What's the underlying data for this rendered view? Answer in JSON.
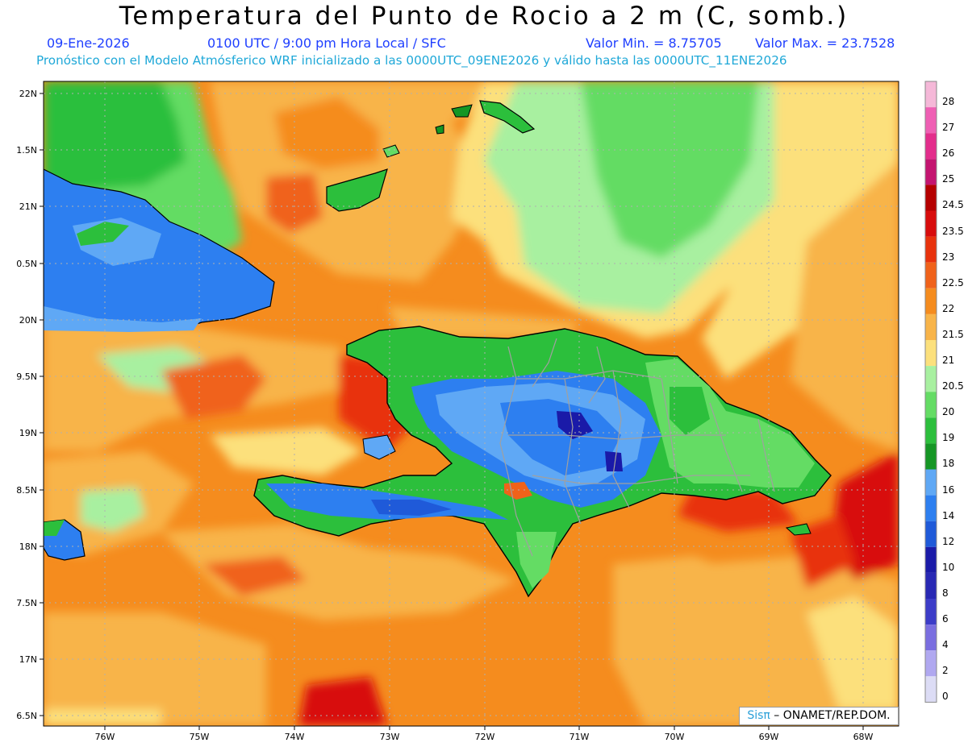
{
  "header": {
    "title": "Temperatura del Punto de Rocio a 2 m (C, somb.)",
    "date": "09-Ene-2026",
    "time": "0100 UTC / 9:00 pm Hora Local / SFC",
    "min_value": "Valor Min. = 8.75705",
    "max_value": "Valor Max. = 23.7528",
    "description": "Pronóstico con el Modelo Atmósferico WRF inicializado a las 0000UTC_09ENE2026 y válido hasta las  0000UTC_11ENE2026"
  },
  "axes": {
    "lat_labels": [
      "22N",
      "1.5N",
      "21N",
      "0.5N",
      "20N",
      "9.5N",
      "19N",
      "8.5N",
      "18N",
      "7.5N",
      "17N",
      "6.5N"
    ],
    "lon_labels": [
      "76W",
      "75W",
      "74W",
      "73W",
      "72W",
      "71W",
      "70W",
      "69W",
      "68W"
    ]
  },
  "colorbar": {
    "levels": [
      {
        "label": "28",
        "color": "#f5b8d8"
      },
      {
        "label": "27",
        "color": "#ef5fb4"
      },
      {
        "label": "26",
        "color": "#e32d8c"
      },
      {
        "label": "25",
        "color": "#c41470"
      },
      {
        "label": "24.5",
        "color": "#b50000"
      },
      {
        "label": "23.5",
        "color": "#d80c0c"
      },
      {
        "label": "23",
        "color": "#e8320c"
      },
      {
        "label": "22.5",
        "color": "#f0621a"
      },
      {
        "label": "22",
        "color": "#f58c1e"
      },
      {
        "label": "21.5",
        "color": "#f8b449"
      },
      {
        "label": "21",
        "color": "#fce07c"
      },
      {
        "label": "20.5",
        "color": "#a8f0a0"
      },
      {
        "label": "20",
        "color": "#64dc64"
      },
      {
        "label": "19",
        "color": "#2cbf3c"
      },
      {
        "label": "18",
        "color": "#159624"
      },
      {
        "label": "16",
        "color": "#5fa8f5"
      },
      {
        "label": "14",
        "color": "#2d7ff0"
      },
      {
        "label": "12",
        "color": "#1f5ad9"
      },
      {
        "label": "10",
        "color": "#1a1aa8"
      },
      {
        "label": "8",
        "color": "#2828b4"
      },
      {
        "label": "6",
        "color": "#3c3cc8"
      },
      {
        "label": "4",
        "color": "#7a6ee0"
      },
      {
        "label": "2",
        "color": "#b0a8f0"
      },
      {
        "label": "0",
        "color": "#dcdcf5"
      }
    ]
  },
  "credit": {
    "brand": "Sisπ",
    "text": " – ONAMET/REP.DOM."
  }
}
